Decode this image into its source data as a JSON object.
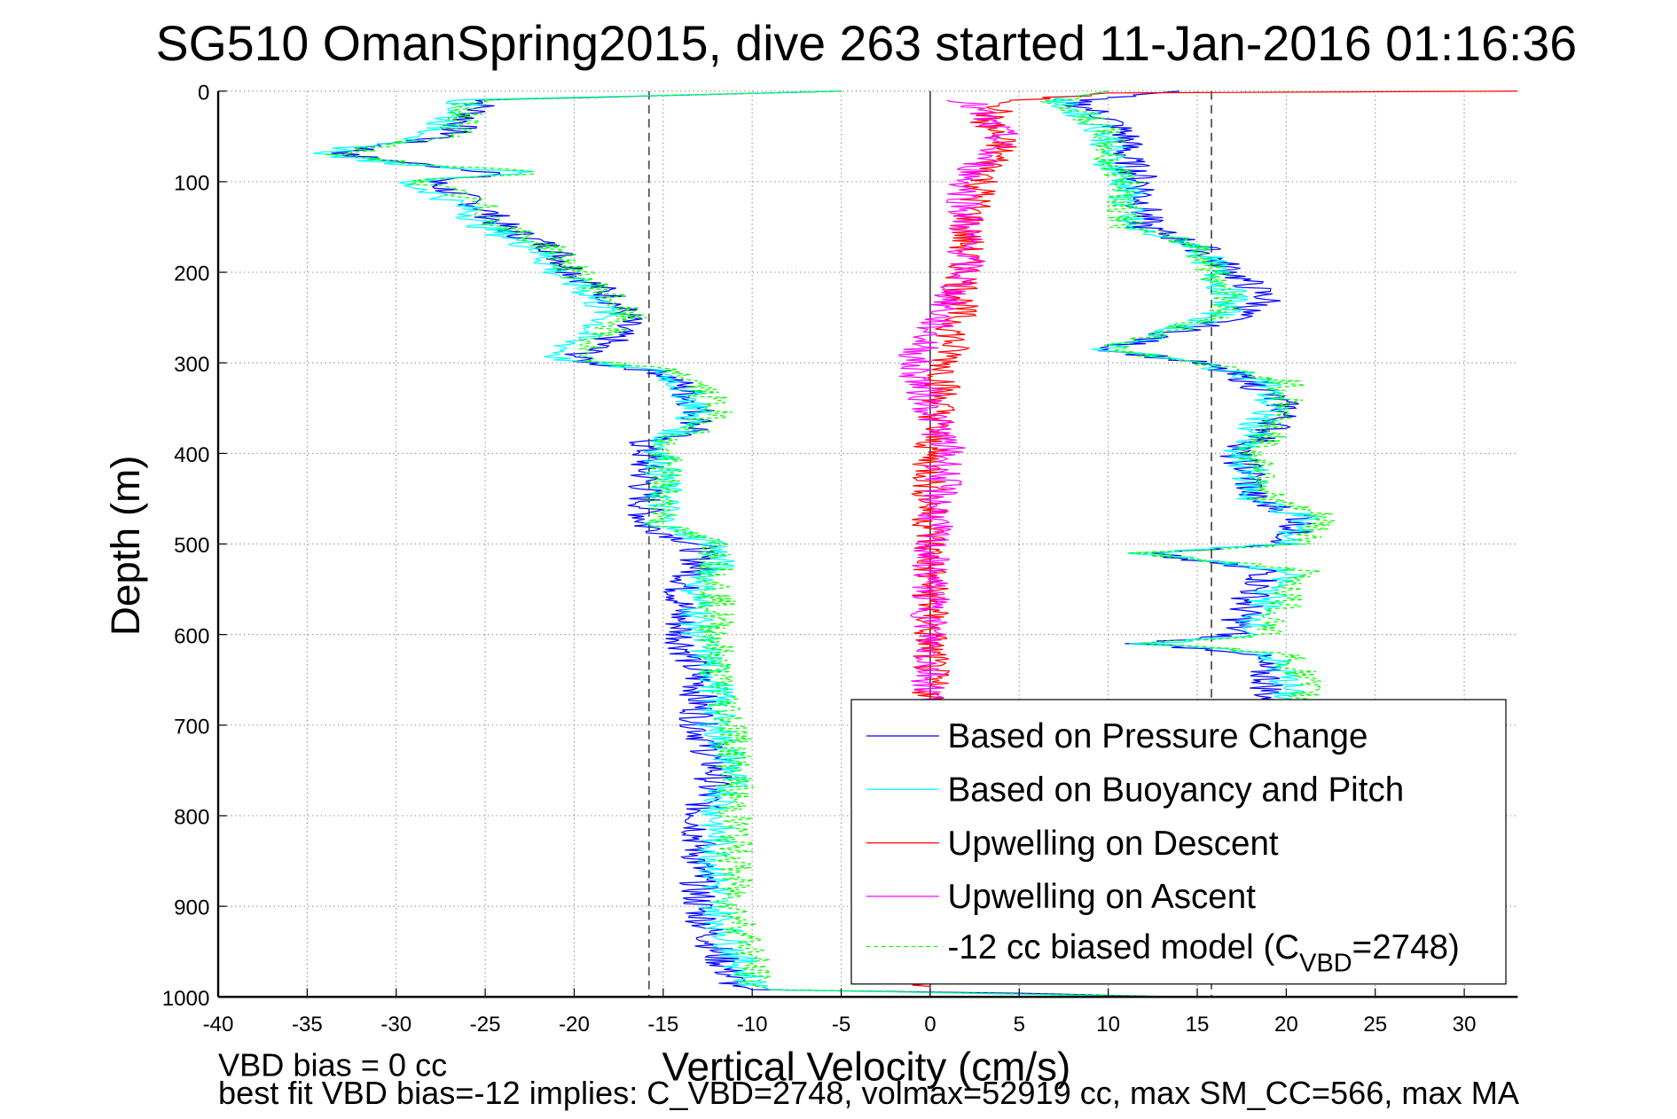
{
  "chart_data": {
    "type": "line",
    "title": "SG510 OmanSpring2015, dive 263 started 11-Jan-2016 01:16:36",
    "xlabel": "Vertical Velocity (cm/s)",
    "ylabel": "Depth (m)",
    "xlim": [
      -40,
      33
    ],
    "ylim": [
      0,
      1000
    ],
    "y_reversed": true,
    "grid": true,
    "xticks": [
      -40,
      -35,
      -30,
      -25,
      -20,
      -15,
      -10,
      -5,
      0,
      5,
      10,
      15,
      20,
      25,
      30
    ],
    "yticks": [
      0,
      100,
      200,
      300,
      400,
      500,
      600,
      700,
      800,
      900,
      1000
    ],
    "reference_lines": {
      "model_descent": -15.8,
      "model_ascent": 15.8,
      "zero": 0
    },
    "legend_position": "bottom-right",
    "series": [
      {
        "name": "Based on Pressure Change",
        "color": "#0000ff",
        "style": "solid",
        "descent": {
          "depth": [
            0,
            10,
            30,
            50,
            60,
            70,
            80,
            90,
            100,
            110,
            130,
            150,
            175,
            200,
            225,
            250,
            275,
            295,
            300,
            310,
            325,
            350,
            375,
            385,
            400,
            450,
            480,
            500,
            525,
            550,
            575,
            600,
            650,
            700,
            750,
            800,
            850,
            900,
            950,
            985,
            992,
            996,
            1000
          ],
          "value": [
            -5,
            -25,
            -26,
            -27,
            -31,
            -33,
            -29,
            -24,
            -28,
            -27,
            -25,
            -24,
            -21,
            -20,
            -18,
            -17,
            -18,
            -20,
            -19,
            -15,
            -14,
            -13,
            -13,
            -16,
            -16,
            -16,
            -16,
            -13,
            -13,
            -14,
            -14,
            -14,
            -13,
            -13,
            -12,
            -13,
            -13,
            -13,
            -12,
            -11,
            -10,
            5,
            14
          ]
        },
        "ascent": {
          "depth": [
            0,
            10,
            30,
            50,
            75,
            100,
            125,
            150,
            170,
            200,
            230,
            250,
            285,
            300,
            320,
            350,
            380,
            400,
            420,
            450,
            470,
            500,
            510,
            530,
            560,
            600,
            610,
            620,
            650,
            680
          ],
          "value": [
            14,
            8,
            10,
            11,
            11,
            12,
            12,
            12,
            15,
            17,
            19,
            17,
            10,
            15,
            18,
            20,
            19,
            17,
            18,
            18,
            21,
            20,
            12,
            19,
            18,
            17,
            12,
            18,
            19,
            19
          ]
        }
      },
      {
        "name": "Based on Buoyancy and Pitch",
        "color": "#00ffff",
        "style": "solid",
        "descent": {
          "depth": [
            0,
            10,
            30,
            50,
            60,
            70,
            80,
            90,
            100,
            110,
            130,
            150,
            175,
            200,
            225,
            250,
            275,
            295,
            300,
            310,
            325,
            350,
            375,
            385,
            400,
            450,
            480,
            500,
            525,
            550,
            575,
            600,
            650,
            700,
            750,
            800,
            850,
            900,
            950,
            985,
            992,
            1000
          ],
          "value": [
            -5,
            -26,
            -27,
            -28,
            -32,
            -34,
            -30,
            -22,
            -30,
            -28,
            -26,
            -25,
            -22,
            -21,
            -19,
            -18,
            -20,
            -21,
            -19,
            -15,
            -14,
            -13,
            -14,
            -15,
            -15,
            -15,
            -15,
            -12,
            -12,
            -13,
            -13,
            -13,
            -12,
            -12,
            -11,
            -12,
            -12,
            -12,
            -11,
            -10,
            -9,
            13
          ]
        },
        "ascent": {
          "depth": [
            0,
            10,
            30,
            50,
            75,
            100,
            125,
            150,
            170,
            200,
            230,
            250,
            285,
            300,
            320,
            350,
            380,
            400,
            420,
            450,
            470,
            500,
            510,
            530,
            560,
            600,
            610,
            620,
            650,
            680
          ],
          "value": [
            10,
            7,
            9,
            10,
            10,
            11,
            11,
            11,
            15,
            16,
            17,
            16,
            10,
            15,
            19,
            19,
            18,
            17,
            18,
            18,
            21,
            20,
            12,
            20,
            19,
            18,
            12,
            19,
            20,
            20
          ]
        }
      },
      {
        "name": "Upwelling on Descent",
        "color": "#ff0000",
        "style": "solid",
        "descent": {
          "depth": [
            0,
            2,
            10,
            30,
            60,
            100,
            150,
            200,
            300,
            400,
            500,
            600,
            700,
            800,
            900,
            990
          ],
          "value": [
            33,
            10,
            5,
            3,
            4,
            3,
            2,
            2,
            1,
            0,
            0,
            0,
            0,
            0,
            0,
            0
          ]
        }
      },
      {
        "name": "Upwelling on Ascent",
        "color": "#ff00ff",
        "style": "solid",
        "ascent": {
          "depth": [
            10,
            50,
            100,
            150,
            200,
            300,
            400,
            500,
            600,
            680
          ],
          "value": [
            2,
            4,
            2,
            2,
            2,
            -1,
            1,
            0,
            0,
            0
          ]
        }
      },
      {
        "name": "-12 cc biased model (C_VBD=2748)",
        "legend_main": "-12 cc biased model (C",
        "legend_sub": "VBD",
        "legend_tail": "=2748)",
        "color": "#00ff00",
        "style": "dashed",
        "descent": {
          "depth": [
            0,
            10,
            30,
            50,
            60,
            70,
            80,
            90,
            100,
            110,
            130,
            150,
            175,
            200,
            225,
            250,
            275,
            295,
            300,
            310,
            325,
            350,
            375,
            385,
            400,
            450,
            480,
            500,
            525,
            550,
            575,
            600,
            650,
            700,
            750,
            800,
            850,
            900,
            950,
            985,
            992,
            1000
          ],
          "value": [
            -5,
            -26,
            -26,
            -27,
            -31,
            -33,
            -29,
            -22,
            -29,
            -27,
            -25,
            -24,
            -21,
            -20,
            -18,
            -17,
            -19,
            -20,
            -18,
            -14,
            -13,
            -12,
            -13,
            -15,
            -15,
            -15,
            -15,
            -12,
            -12,
            -12,
            -12,
            -12,
            -12,
            -11,
            -11,
            -11,
            -11,
            -11,
            -10,
            -10,
            -9,
            15
          ]
        },
        "ascent": {
          "depth": [
            0,
            10,
            30,
            50,
            75,
            100,
            125,
            150,
            170,
            200,
            230,
            250,
            285,
            300,
            320,
            350,
            380,
            400,
            420,
            450,
            470,
            500,
            510,
            530,
            560,
            600,
            610,
            620,
            650,
            680
          ],
          "value": [
            10,
            7,
            9,
            10,
            10,
            11,
            11,
            11,
            15,
            16,
            17,
            16,
            10,
            15,
            20,
            20,
            19,
            18,
            19,
            19,
            22,
            21,
            12,
            21,
            20,
            19,
            12,
            20,
            21,
            21
          ]
        }
      }
    ]
  },
  "footer": {
    "line1": "VBD bias = 0 cc",
    "line2": "best fit VBD bias=-12 implies: C_VBD=2748, volmax=52919 cc, max SM_CC=566, max MA"
  }
}
